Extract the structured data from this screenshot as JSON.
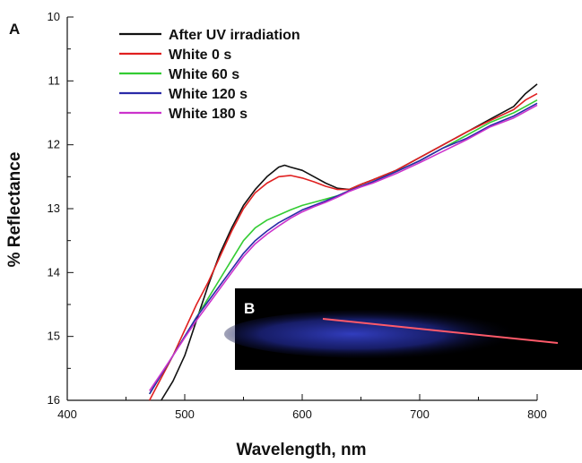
{
  "chart_data": {
    "type": "line",
    "panel_a_label": "A",
    "panel_b_label": "B",
    "xlabel": "Wavelength, nm",
    "ylabel": "% Reflectance",
    "xlim": [
      400,
      800
    ],
    "ylim": [
      10,
      16
    ],
    "y_inverted": true,
    "x_ticks": [
      400,
      500,
      600,
      700,
      800
    ],
    "y_ticks": [
      10,
      11,
      12,
      13,
      14,
      15,
      16
    ],
    "legend_position": "top-left",
    "series": [
      {
        "name": "After UV irradiation",
        "color": "#111111",
        "x": [
          480,
          490,
          500,
          510,
          520,
          530,
          540,
          550,
          560,
          570,
          580,
          585,
          590,
          600,
          610,
          620,
          630,
          640,
          650,
          660,
          680,
          700,
          720,
          740,
          760,
          780,
          790,
          800
        ],
        "y": [
          16.0,
          15.7,
          15.3,
          14.75,
          14.2,
          13.7,
          13.3,
          12.95,
          12.7,
          12.5,
          12.35,
          12.32,
          12.35,
          12.4,
          12.5,
          12.6,
          12.68,
          12.7,
          12.62,
          12.55,
          12.4,
          12.2,
          12.0,
          11.8,
          11.6,
          11.4,
          11.2,
          11.05
        ]
      },
      {
        "name": "White 0 s",
        "color": "#e02020",
        "x": [
          470,
          480,
          490,
          500,
          510,
          520,
          530,
          540,
          550,
          560,
          570,
          580,
          590,
          600,
          610,
          620,
          630,
          640,
          650,
          660,
          680,
          700,
          720,
          740,
          760,
          780,
          790,
          800
        ],
        "y": [
          16.0,
          15.65,
          15.3,
          14.9,
          14.5,
          14.15,
          13.75,
          13.35,
          13.0,
          12.75,
          12.6,
          12.5,
          12.48,
          12.52,
          12.58,
          12.65,
          12.7,
          12.7,
          12.62,
          12.55,
          12.4,
          12.2,
          12.0,
          11.8,
          11.62,
          11.45,
          11.3,
          11.2
        ]
      },
      {
        "name": "White 60 s",
        "color": "#33cc33",
        "x": [
          470,
          480,
          490,
          500,
          510,
          520,
          530,
          540,
          550,
          560,
          570,
          580,
          590,
          600,
          610,
          620,
          630,
          640,
          650,
          660,
          680,
          700,
          720,
          740,
          760,
          780,
          790,
          800
        ],
        "y": [
          15.9,
          15.6,
          15.3,
          15.0,
          14.7,
          14.4,
          14.1,
          13.8,
          13.5,
          13.3,
          13.18,
          13.1,
          13.02,
          12.95,
          12.9,
          12.85,
          12.8,
          12.72,
          12.65,
          12.58,
          12.42,
          12.25,
          12.05,
          11.85,
          11.65,
          11.5,
          11.4,
          11.3
        ]
      },
      {
        "name": "White 120 s",
        "color": "#2a2aa8",
        "x": [
          470,
          480,
          490,
          500,
          510,
          520,
          530,
          540,
          550,
          560,
          570,
          580,
          590,
          600,
          610,
          620,
          630,
          640,
          650,
          660,
          680,
          700,
          720,
          740,
          760,
          780,
          790,
          800
        ],
        "y": [
          15.9,
          15.6,
          15.3,
          15.0,
          14.7,
          14.45,
          14.2,
          13.95,
          13.7,
          13.5,
          13.35,
          13.22,
          13.12,
          13.02,
          12.95,
          12.88,
          12.8,
          12.72,
          12.65,
          12.58,
          12.42,
          12.25,
          12.05,
          11.9,
          11.7,
          11.55,
          11.45,
          11.35
        ]
      },
      {
        "name": "White 180 s",
        "color": "#cc33cc",
        "x": [
          470,
          480,
          490,
          500,
          510,
          520,
          530,
          540,
          550,
          560,
          570,
          580,
          590,
          600,
          610,
          620,
          630,
          640,
          650,
          660,
          680,
          700,
          720,
          740,
          760,
          780,
          790,
          800
        ],
        "y": [
          15.85,
          15.58,
          15.3,
          15.02,
          14.75,
          14.5,
          14.25,
          14.0,
          13.75,
          13.55,
          13.4,
          13.27,
          13.15,
          13.05,
          12.97,
          12.9,
          12.82,
          12.73,
          12.66,
          12.6,
          12.45,
          12.28,
          12.1,
          11.92,
          11.72,
          11.58,
          11.48,
          11.38
        ]
      }
    ]
  }
}
